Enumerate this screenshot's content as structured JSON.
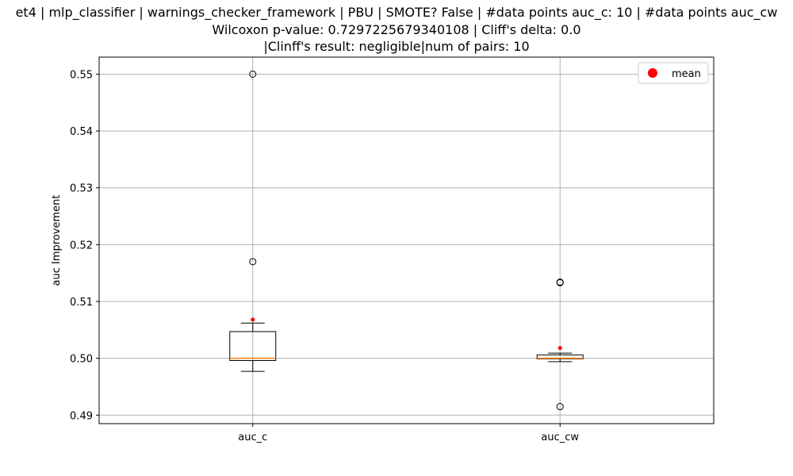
{
  "chart_data": {
    "type": "boxplot",
    "title_lines": [
      "et4 | mlp_classifier | warnings_checker_framework | PBU | SMOTE? False | #data points auc_c: 10 | #data points auc_cw",
      "Wilcoxon p-value: 0.7297225679340108 | Cliff's delta: 0.0",
      "|Clinff's result: negligible|num of pairs: 10"
    ],
    "xlabel": "",
    "ylabel": "auc Improvement",
    "ylim": [
      0.4885,
      0.553
    ],
    "yticks": [
      0.49,
      0.5,
      0.51,
      0.52,
      0.53,
      0.54,
      0.55
    ],
    "ytick_labels": [
      "0.49",
      "0.50",
      "0.51",
      "0.52",
      "0.53",
      "0.54",
      "0.55"
    ],
    "grid": true,
    "legend": {
      "placement": "top-right",
      "entries": [
        {
          "label": "mean",
          "color": "#ff0000"
        }
      ]
    },
    "categories": [
      "auc_c",
      "auc_cw"
    ],
    "boxes": [
      {
        "name": "auc_c",
        "whisker_low": 0.4977,
        "q1": 0.4996,
        "median": 0.5,
        "q3": 0.5047,
        "whisker_high": 0.5062,
        "mean": 0.5068,
        "outliers": [
          0.55,
          0.517
        ]
      },
      {
        "name": "auc_cw",
        "whisker_low": 0.4994,
        "q1": 0.4999,
        "median": 0.5,
        "q3": 0.5006,
        "whisker_high": 0.5009,
        "mean": 0.5018,
        "outliers": [
          0.5133,
          0.5134,
          0.4915
        ]
      }
    ],
    "colors": {
      "box": "#000000",
      "median": "#ff7f0e",
      "mean": "#ff0000",
      "grid": "#b0b0b0"
    }
  }
}
